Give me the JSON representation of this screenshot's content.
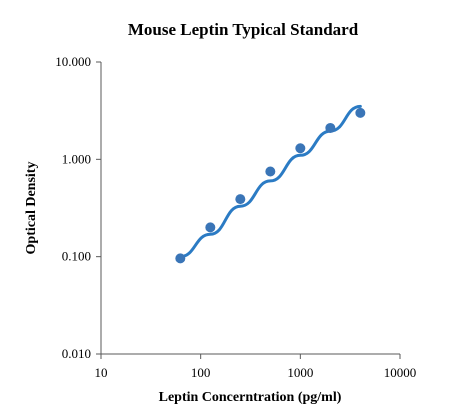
{
  "chart_data": {
    "type": "scatter",
    "title": "Mouse Leptin Typical Standard",
    "xlabel": "Leptin Concerntration (pg/ml)",
    "ylabel": "Optical Density",
    "x_scale": "log",
    "y_scale": "log",
    "xlim": [
      10,
      10000
    ],
    "ylim": [
      0.01,
      10
    ],
    "x_ticks": [
      "10",
      "100",
      "1000",
      "10000"
    ],
    "y_ticks": [
      "0.010",
      "0.100",
      "1.000",
      "10.000"
    ],
    "grid": false,
    "legend": "none",
    "series": [
      {
        "points": [
          {
            "x": 62.5,
            "y": 0.096
          },
          {
            "x": 125,
            "y": 0.2
          },
          {
            "x": 250,
            "y": 0.39
          },
          {
            "x": 500,
            "y": 0.75
          },
          {
            "x": 1000,
            "y": 1.3
          },
          {
            "x": 2000,
            "y": 2.1
          },
          {
            "x": 4000,
            "y": 3.0
          }
        ],
        "marker_color": "#3a75b7",
        "trendline": {
          "color": "#2b7bc4",
          "points": [
            {
              "x": 62.5,
              "y": 0.1
            },
            {
              "x": 125,
              "y": 0.17
            },
            {
              "x": 250,
              "y": 0.33
            },
            {
              "x": 500,
              "y": 0.6
            },
            {
              "x": 1000,
              "y": 1.1
            },
            {
              "x": 2000,
              "y": 1.95
            },
            {
              "x": 4000,
              "y": 3.5
            }
          ]
        }
      }
    ]
  }
}
